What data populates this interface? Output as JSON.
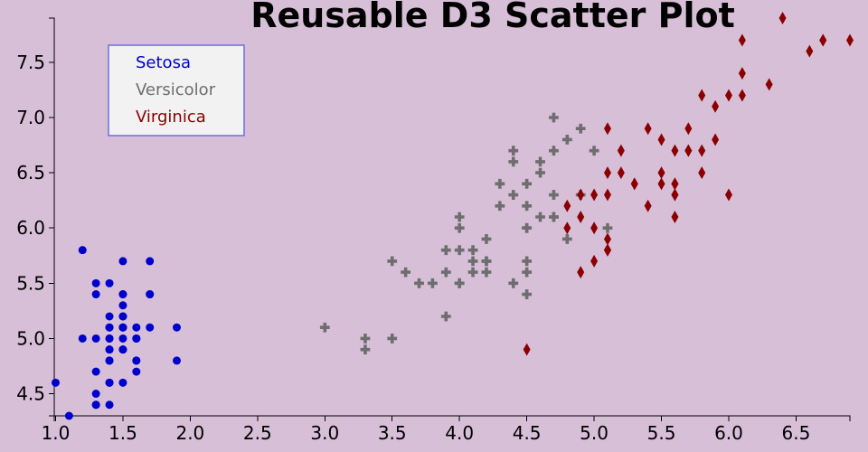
{
  "chart_data": {
    "type": "scatter",
    "title": "Reusable D3 Scatter Plot",
    "xlabel": "",
    "ylabel": "",
    "xlim": [
      0.99,
      6.9
    ],
    "ylim": [
      4.3,
      7.9
    ],
    "x_ticks": [
      "1.0",
      "1.5",
      "2.0",
      "2.5",
      "3.0",
      "3.5",
      "4.0",
      "4.5",
      "5.0",
      "5.5",
      "6.0",
      "6.5"
    ],
    "y_ticks": [
      "4.5",
      "5.0",
      "5.5",
      "6.0",
      "6.5",
      "7.0",
      "7.5"
    ],
    "grid": false,
    "legend_position": "top-left",
    "series": [
      {
        "name": "Setosa",
        "color": "#0000cd",
        "marker": "circle",
        "points": [
          [
            1.4,
            5.1
          ],
          [
            1.4,
            4.9
          ],
          [
            1.3,
            4.7
          ],
          [
            1.5,
            4.6
          ],
          [
            1.4,
            5.0
          ],
          [
            1.7,
            5.4
          ],
          [
            1.4,
            4.6
          ],
          [
            1.5,
            5.0
          ],
          [
            1.4,
            4.4
          ],
          [
            1.5,
            4.9
          ],
          [
            1.5,
            5.4
          ],
          [
            1.6,
            4.8
          ],
          [
            1.4,
            4.8
          ],
          [
            1.1,
            4.3
          ],
          [
            1.2,
            5.8
          ],
          [
            1.5,
            5.7
          ],
          [
            1.3,
            5.4
          ],
          [
            1.4,
            5.1
          ],
          [
            1.7,
            5.7
          ],
          [
            1.5,
            5.1
          ],
          [
            1.7,
            5.4
          ],
          [
            1.5,
            5.1
          ],
          [
            1.0,
            4.6
          ],
          [
            1.7,
            5.1
          ],
          [
            1.9,
            4.8
          ],
          [
            1.6,
            5.0
          ],
          [
            1.6,
            5.0
          ],
          [
            1.5,
            5.2
          ],
          [
            1.4,
            5.2
          ],
          [
            1.6,
            4.7
          ],
          [
            1.6,
            4.8
          ],
          [
            1.5,
            5.4
          ],
          [
            1.5,
            5.2
          ],
          [
            1.4,
            5.5
          ],
          [
            1.5,
            4.9
          ],
          [
            1.2,
            5.0
          ],
          [
            1.3,
            5.5
          ],
          [
            1.4,
            4.9
          ],
          [
            1.3,
            4.4
          ],
          [
            1.5,
            5.1
          ],
          [
            1.3,
            5.0
          ],
          [
            1.3,
            4.5
          ],
          [
            1.3,
            4.4
          ],
          [
            1.6,
            5.0
          ],
          [
            1.9,
            5.1
          ],
          [
            1.4,
            4.8
          ],
          [
            1.6,
            5.1
          ],
          [
            1.4,
            4.6
          ],
          [
            1.5,
            5.3
          ],
          [
            1.4,
            5.0
          ]
        ]
      },
      {
        "name": "Versicolor",
        "color": "#6e6e6e",
        "marker": "cross",
        "points": [
          [
            4.7,
            7.0
          ],
          [
            4.5,
            6.4
          ],
          [
            4.9,
            6.9
          ],
          [
            4.0,
            5.5
          ],
          [
            4.6,
            6.5
          ],
          [
            4.5,
            5.7
          ],
          [
            4.7,
            6.3
          ],
          [
            3.3,
            4.9
          ],
          [
            4.6,
            6.6
          ],
          [
            3.9,
            5.2
          ],
          [
            3.5,
            5.0
          ],
          [
            4.2,
            5.9
          ],
          [
            4.0,
            6.0
          ],
          [
            4.7,
            6.1
          ],
          [
            3.6,
            5.6
          ],
          [
            4.4,
            6.7
          ],
          [
            4.5,
            5.6
          ],
          [
            4.1,
            5.8
          ],
          [
            4.5,
            6.2
          ],
          [
            3.9,
            5.6
          ],
          [
            4.8,
            5.9
          ],
          [
            4.0,
            6.1
          ],
          [
            4.9,
            6.3
          ],
          [
            4.7,
            6.1
          ],
          [
            4.3,
            6.4
          ],
          [
            4.4,
            6.6
          ],
          [
            4.8,
            6.8
          ],
          [
            5.0,
            6.7
          ],
          [
            4.5,
            6.0
          ],
          [
            3.5,
            5.7
          ],
          [
            3.8,
            5.5
          ],
          [
            3.7,
            5.5
          ],
          [
            3.9,
            5.8
          ],
          [
            5.1,
            6.0
          ],
          [
            4.5,
            5.4
          ],
          [
            4.5,
            6.0
          ],
          [
            4.7,
            6.7
          ],
          [
            4.4,
            6.3
          ],
          [
            4.1,
            5.6
          ],
          [
            4.0,
            5.5
          ],
          [
            4.4,
            5.5
          ],
          [
            4.6,
            6.1
          ],
          [
            4.0,
            5.8
          ],
          [
            3.3,
            5.0
          ],
          [
            4.2,
            5.6
          ],
          [
            4.2,
            5.7
          ],
          [
            4.2,
            5.7
          ],
          [
            4.3,
            6.2
          ],
          [
            3.0,
            5.1
          ],
          [
            4.1,
            5.7
          ]
        ]
      },
      {
        "name": "Virginica",
        "color": "#8b0000",
        "marker": "diamond",
        "points": [
          [
            6.0,
            6.3
          ],
          [
            5.1,
            5.8
          ],
          [
            5.9,
            7.1
          ],
          [
            5.6,
            6.3
          ],
          [
            5.8,
            6.5
          ],
          [
            6.6,
            7.6
          ],
          [
            4.5,
            4.9
          ],
          [
            6.3,
            7.3
          ],
          [
            5.8,
            6.7
          ],
          [
            6.1,
            7.2
          ],
          [
            5.1,
            6.5
          ],
          [
            5.3,
            6.4
          ],
          [
            5.5,
            6.8
          ],
          [
            5.0,
            5.7
          ],
          [
            5.1,
            5.8
          ],
          [
            5.3,
            6.4
          ],
          [
            5.5,
            6.5
          ],
          [
            6.7,
            7.7
          ],
          [
            6.9,
            7.7
          ],
          [
            5.0,
            6.0
          ],
          [
            5.7,
            6.9
          ],
          [
            4.9,
            5.6
          ],
          [
            6.7,
            7.7
          ],
          [
            4.9,
            6.3
          ],
          [
            5.7,
            6.7
          ],
          [
            6.0,
            7.2
          ],
          [
            4.8,
            6.2
          ],
          [
            4.9,
            6.1
          ],
          [
            5.6,
            6.4
          ],
          [
            5.8,
            7.2
          ],
          [
            6.1,
            7.4
          ],
          [
            6.4,
            7.9
          ],
          [
            5.6,
            6.4
          ],
          [
            5.1,
            6.3
          ],
          [
            5.6,
            6.1
          ],
          [
            6.1,
            7.7
          ],
          [
            5.6,
            6.3
          ],
          [
            5.5,
            6.4
          ],
          [
            4.8,
            6.0
          ],
          [
            5.4,
            6.9
          ],
          [
            5.6,
            6.7
          ],
          [
            5.1,
            6.9
          ],
          [
            5.1,
            5.8
          ],
          [
            5.9,
            6.8
          ],
          [
            5.7,
            6.7
          ],
          [
            5.2,
            6.7
          ],
          [
            5.0,
            6.3
          ],
          [
            5.2,
            6.5
          ],
          [
            5.4,
            6.2
          ],
          [
            5.1,
            5.9
          ]
        ]
      }
    ]
  }
}
